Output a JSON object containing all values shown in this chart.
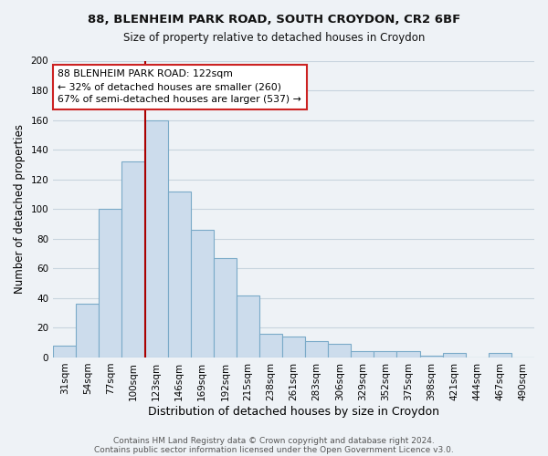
{
  "title1": "88, BLENHEIM PARK ROAD, SOUTH CROYDON, CR2 6BF",
  "title2": "Size of property relative to detached houses in Croydon",
  "xlabel": "Distribution of detached houses by size in Croydon",
  "ylabel": "Number of detached properties",
  "bar_color": "#ccdcec",
  "bar_edge_color": "#7aaac8",
  "categories": [
    "31sqm",
    "54sqm",
    "77sqm",
    "100sqm",
    "123sqm",
    "146sqm",
    "169sqm",
    "192sqm",
    "215sqm",
    "238sqm",
    "261sqm",
    "283sqm",
    "306sqm",
    "329sqm",
    "352sqm",
    "375sqm",
    "398sqm",
    "421sqm",
    "444sqm",
    "467sqm",
    "490sqm"
  ],
  "values": [
    8,
    36,
    100,
    132,
    160,
    112,
    86,
    67,
    42,
    16,
    14,
    11,
    9,
    4,
    4,
    4,
    1,
    3,
    0,
    3,
    0
  ],
  "ylim": [
    0,
    200
  ],
  "yticks": [
    0,
    20,
    40,
    60,
    80,
    100,
    120,
    140,
    160,
    180,
    200
  ],
  "vline_index": 4,
  "annotation_title": "88 BLENHEIM PARK ROAD: 122sqm",
  "annotation_line1": "← 32% of detached houses are smaller (260)",
  "annotation_line2": "67% of semi-detached houses are larger (537) →",
  "vline_color": "#aa0000",
  "annotation_box_color": "#ffffff",
  "annotation_box_edge": "#cc2222",
  "footer1": "Contains HM Land Registry data © Crown copyright and database right 2024.",
  "footer2": "Contains public sector information licensed under the Open Government Licence v3.0.",
  "background_color": "#eef2f6",
  "plot_bg_color": "#eef2f6",
  "grid_color": "#c8d4de",
  "title1_fontsize": 9.5,
  "title2_fontsize": 8.5,
  "xlabel_fontsize": 9,
  "ylabel_fontsize": 8.5,
  "tick_fontsize": 7.5,
  "footer_fontsize": 6.5
}
